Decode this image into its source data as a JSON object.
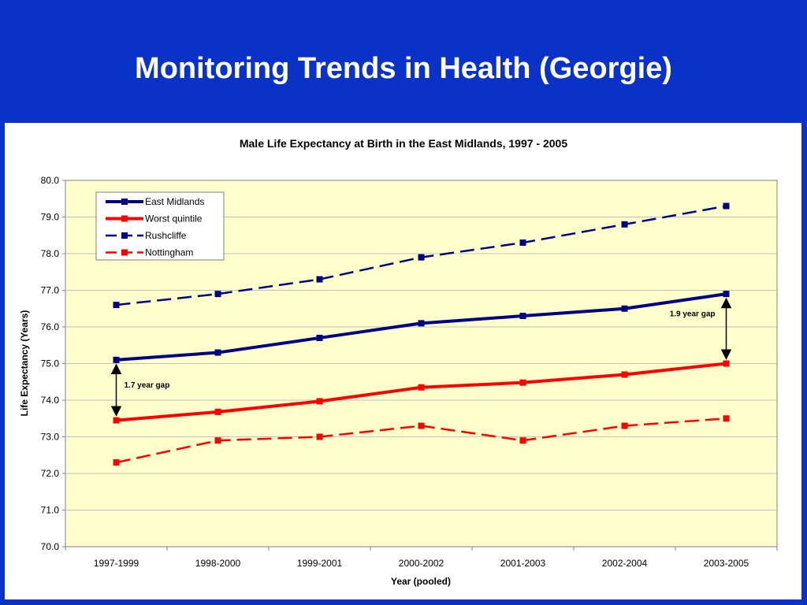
{
  "slide": {
    "title": "Monitoring Trends in Health (Georgie)"
  },
  "colors": {
    "background": "#0a32c8",
    "plot_area": "#ffffcc",
    "navy": "#000080",
    "red": "#ff0000"
  },
  "chart_data": {
    "type": "line",
    "title": "Male Life Expectancy at Birth in the East Midlands, 1997 - 2005",
    "xlabel": "Year (pooled)",
    "ylabel": "Life Expectancy (Years)",
    "ylim": [
      70.0,
      80.0
    ],
    "yticks": [
      "70.0",
      "71.0",
      "72.0",
      "73.0",
      "74.0",
      "75.0",
      "76.0",
      "77.0",
      "78.0",
      "79.0",
      "80.0"
    ],
    "categories": [
      "1997-1999",
      "1998-2000",
      "1999-2001",
      "2000-2002",
      "2001-2003",
      "2002-2004",
      "2003-2005"
    ],
    "grid": true,
    "legend_position": "top-left",
    "series": [
      {
        "name": "East Midlands",
        "color": "#000080",
        "dashed": false,
        "values": [
          75.1,
          75.3,
          75.7,
          76.1,
          76.3,
          76.5,
          76.9
        ]
      },
      {
        "name": "Worst quintile",
        "color": "#ff0000",
        "dashed": false,
        "values": [
          73.45,
          73.68,
          73.97,
          74.35,
          74.48,
          74.7,
          75.0
        ]
      },
      {
        "name": "Rushcliffe",
        "color": "#000080",
        "dashed": true,
        "values": [
          76.6,
          76.9,
          77.3,
          77.9,
          78.3,
          78.8,
          79.3
        ]
      },
      {
        "name": "Nottingham",
        "color": "#ff0000",
        "dashed": true,
        "values": [
          72.3,
          72.9,
          73.0,
          73.3,
          72.9,
          73.3,
          73.5
        ]
      }
    ],
    "annotations": [
      {
        "text": "1.7 year gap",
        "category_index": 0,
        "from": 75.1,
        "to": 73.45
      },
      {
        "text": "1.9 year gap",
        "category_index": 6,
        "from": 76.9,
        "to": 75.0
      }
    ]
  }
}
